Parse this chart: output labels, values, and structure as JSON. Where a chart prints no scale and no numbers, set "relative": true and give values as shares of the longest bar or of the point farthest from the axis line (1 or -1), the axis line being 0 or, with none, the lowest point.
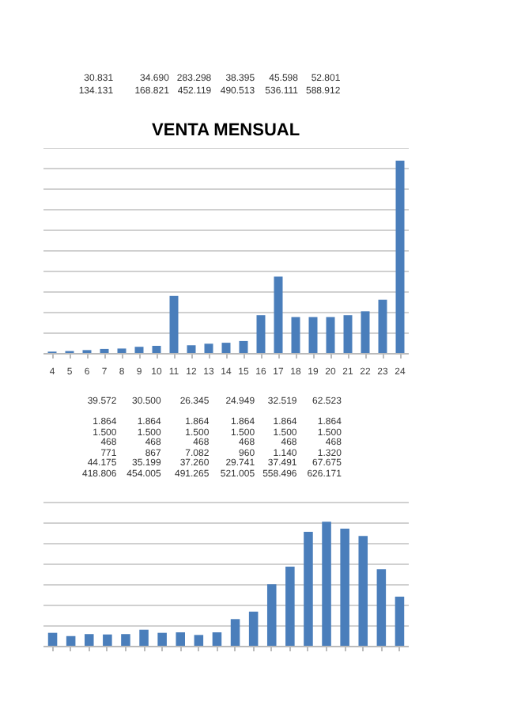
{
  "chart_data": [
    {
      "type": "other",
      "annotations": [
        "30.831",
        "34.690",
        "283.298",
        "38.395",
        "45.598",
        "52.801",
        "134.131",
        "168.821",
        "452.119",
        "490.513",
        "536.111",
        "588.912"
      ]
    },
    {
      "type": "bar",
      "title": "VENTA MENSUAL",
      "relative": true,
      "grid": "y",
      "color": "#4a7ebb",
      "categories": [
        "4",
        "5",
        "6",
        "7",
        "8",
        "9",
        "10",
        "11",
        "12",
        "13",
        "14",
        "15",
        "16",
        "17",
        "18",
        "19",
        "20",
        "21",
        "22",
        "23",
        "24"
      ],
      "values": [
        0.011,
        0.014,
        0.019,
        0.025,
        0.027,
        0.036,
        0.041,
        0.3,
        0.044,
        0.052,
        0.057,
        0.066,
        0.2,
        0.4,
        0.19,
        0.19,
        0.19,
        0.2,
        0.22,
        0.28,
        1
      ]
    },
    {
      "type": "other",
      "annotations": [
        "39.572",
        "30.500",
        "26.345",
        "24.949",
        "32.519",
        "62.523",
        "1.864",
        "1.864",
        "1.864",
        "1.864",
        "1.864",
        "1.864",
        "1.500",
        "1.500",
        "1.500",
        "1.500",
        "1.500",
        "1.500",
        "468",
        "468",
        "468",
        "468",
        "468",
        "468",
        "771",
        "867",
        "7.082",
        "960",
        "1.140",
        "1.320",
        "44.175",
        "35.199",
        "37.260",
        "29.741",
        "37.491",
        "67.675",
        "418.806",
        "454.005",
        "491.265",
        "521.005",
        "558.496",
        "626.171"
      ]
    },
    {
      "type": "bar",
      "relative": true,
      "grid": "y",
      "color": "#4a7ebb",
      "categories": [
        null,
        null,
        null,
        null,
        null,
        null,
        null,
        null,
        null,
        null,
        null,
        null,
        null,
        null,
        null,
        null,
        null,
        null,
        null,
        null
      ],
      "values": [
        0.11,
        0.084,
        0.1,
        0.097,
        0.1,
        0.135,
        0.11,
        0.114,
        0.093,
        0.114,
        0.22,
        0.28,
        0.5,
        0.64,
        0.92,
        1,
        0.945,
        0.886,
        0.62,
        0.4
      ]
    }
  ]
}
